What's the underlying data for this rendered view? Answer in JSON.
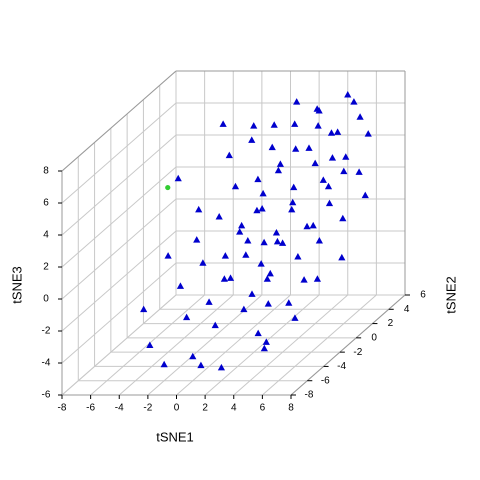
{
  "chart_data": {
    "type": "scatter3d",
    "xlabel": "tSNE1",
    "ylabel": "tSNE2",
    "zlabel": "tSNE3",
    "xlim": [
      -8,
      8
    ],
    "ylim": [
      -8,
      6
    ],
    "zlim": [
      -6,
      8
    ],
    "xticks": [
      -8,
      -6,
      -4,
      -2,
      0,
      2,
      4,
      6,
      8
    ],
    "yticks": [
      -8,
      -6,
      -4,
      -2,
      0,
      2,
      4,
      6
    ],
    "zticks": [
      -6,
      -4,
      -2,
      0,
      2,
      4,
      6,
      8
    ],
    "grid": true,
    "series": [
      {
        "color": "#0000cd",
        "marker": "triangle",
        "x": [
          -3,
          -1,
          0,
          1,
          2,
          3,
          -2,
          0,
          1.5,
          3,
          4,
          5,
          -1,
          0.5,
          2,
          3.5,
          5,
          6,
          -2,
          0,
          1,
          2.5,
          4,
          5.5,
          -1,
          1,
          2,
          3,
          4.5,
          6,
          -3,
          0,
          1.5,
          2.5,
          3.5,
          5,
          7,
          -1,
          0.5,
          2,
          3,
          4,
          5.5,
          6.5,
          -2,
          0,
          1,
          2.5,
          4,
          5,
          6,
          -1,
          1,
          2,
          3,
          4,
          5,
          6.5,
          0,
          1.5,
          3,
          4,
          5,
          6,
          -2,
          1,
          2.5,
          3.5,
          5,
          6,
          2,
          4,
          -4,
          -4,
          -5,
          7,
          7.5,
          0,
          -2,
          3,
          2,
          1,
          4,
          -3
        ],
        "y": [
          -6,
          -5,
          -6,
          -5,
          -6,
          -5,
          -4,
          -4,
          -4,
          -4,
          -5,
          -6,
          -3,
          -3,
          -3,
          -3,
          -3,
          -4,
          -2,
          -2,
          -2,
          -2,
          -2,
          -2,
          -1,
          -1,
          -1,
          -1,
          -1,
          -1,
          0,
          0,
          0,
          0,
          0,
          0,
          0,
          1,
          1,
          1,
          1,
          1,
          1,
          1,
          2,
          2,
          2,
          2,
          2,
          2,
          2,
          3,
          3,
          3,
          3,
          3,
          3,
          3,
          4,
          4,
          4,
          4,
          4,
          4,
          5,
          5,
          5,
          5,
          5,
          5,
          6,
          6,
          -5,
          -2,
          1,
          -3,
          2,
          -5,
          -6,
          -2,
          0,
          1,
          -4,
          3
        ],
        "z": [
          -3.8,
          -2.5,
          -4.5,
          -3,
          -5.2,
          -2,
          -1,
          -2,
          -0.5,
          -1.5,
          -3.5,
          -4,
          0,
          -1,
          0.5,
          -1,
          -2.5,
          -3,
          1,
          0,
          1.5,
          -0.5,
          0.8,
          -1.5,
          2,
          0.5,
          2.5,
          1,
          -0.5,
          0.5,
          2,
          1,
          3,
          0,
          2,
          1,
          -1,
          3,
          1.5,
          4,
          2,
          0.5,
          3,
          1,
          4.5,
          3,
          5,
          2.5,
          4,
          1.5,
          3.5,
          5,
          3.5,
          6,
          4.5,
          2.5,
          5.5,
          3,
          5.5,
          4,
          6.5,
          5,
          3.5,
          6,
          5,
          6.5,
          5,
          3,
          6.5,
          4.5,
          5.5,
          6.5,
          -2,
          0,
          3.5,
          -1,
          2,
          -5.5,
          -5,
          -3,
          -2,
          -0.5,
          -4.5,
          6
        ]
      },
      {
        "color": "#32cd32",
        "marker": "circle",
        "x": [
          -6.3
        ],
        "y": [
          2
        ],
        "z": [
          2.5
        ]
      }
    ]
  }
}
